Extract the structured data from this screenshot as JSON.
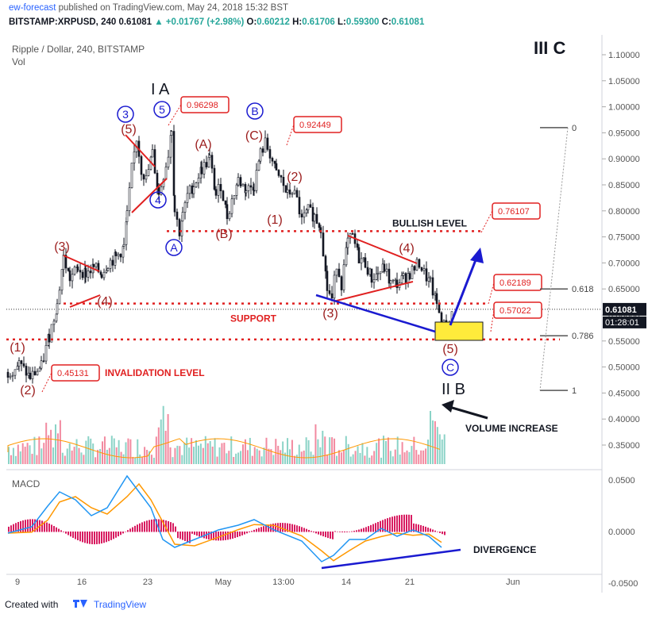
{
  "header": {
    "publisher": "ew-forecast",
    "published_text": "published on TradingView.com, May 24, 2018 15:32 BST",
    "symbol_line": "BITSTAMP:XRPUSD, 240",
    "last": "0.61081",
    "change": "+0.01767 (+2.98%)",
    "ohlc": {
      "O": "0.60212",
      "H": "0.61706",
      "L": "0.59300",
      "C": "0.61081"
    }
  },
  "chart_title": "Ripple / Dollar, 240, BITSTAMP",
  "volume_label": "Vol",
  "macd_label": "MACD",
  "wave_label_top_right": "III C",
  "footer": {
    "created_with": "Created with",
    "brand": "TradingView"
  },
  "chart_data": {
    "type": "line",
    "title": "Ripple / Dollar, 240, BITSTAMP",
    "price_axis": {
      "ticks": [
        "1.10000",
        "1.05000",
        "1.00000",
        "0.95000",
        "0.90000",
        "0.85000",
        "0.80000",
        "0.75000",
        "0.70000",
        "0.65000",
        "0.60000",
        "0.55000",
        "0.50000",
        "0.45000",
        "0.40000",
        "0.35000"
      ],
      "ylim": [
        0.32,
        1.12
      ],
      "current_price": "0.61081",
      "countdown": "01:28:01"
    },
    "macd_axis": {
      "ticks": [
        "0.0500",
        "0.0000",
        "-0.0500"
      ]
    },
    "x_ticks": [
      "9",
      "16",
      "23",
      "May",
      "13:00",
      "14",
      "21",
      "Jun"
    ],
    "price_path": [
      [
        0,
        0.49
      ],
      [
        14,
        0.505
      ],
      [
        28,
        0.48
      ],
      [
        42,
        0.5
      ],
      [
        52,
        0.56
      ],
      [
        62,
        0.62
      ],
      [
        70,
        0.71
      ],
      [
        78,
        0.67
      ],
      [
        88,
        0.69
      ],
      [
        98,
        0.68
      ],
      [
        108,
        0.69
      ],
      [
        118,
        0.68
      ],
      [
        126,
        0.7
      ],
      [
        136,
        0.71
      ],
      [
        146,
        0.73
      ],
      [
        150,
        0.79
      ],
      [
        156,
        0.88
      ],
      [
        162,
        0.94
      ],
      [
        168,
        0.88
      ],
      [
        174,
        0.86
      ],
      [
        182,
        0.91
      ],
      [
        190,
        0.83
      ],
      [
        196,
        0.87
      ],
      [
        202,
        0.91
      ],
      [
        206,
        0.96
      ],
      [
        210,
        0.8
      ],
      [
        216,
        0.76
      ],
      [
        220,
        0.79
      ],
      [
        226,
        0.83
      ],
      [
        234,
        0.85
      ],
      [
        244,
        0.88
      ],
      [
        254,
        0.9
      ],
      [
        262,
        0.83
      ],
      [
        268,
        0.85
      ],
      [
        276,
        0.79
      ],
      [
        282,
        0.82
      ],
      [
        290,
        0.86
      ],
      [
        300,
        0.84
      ],
      [
        310,
        0.85
      ],
      [
        318,
        0.91
      ],
      [
        324,
        0.93
      ],
      [
        330,
        0.91
      ],
      [
        338,
        0.87
      ],
      [
        344,
        0.86
      ],
      [
        352,
        0.83
      ],
      [
        358,
        0.84
      ],
      [
        364,
        0.82
      ],
      [
        370,
        0.78
      ],
      [
        378,
        0.8
      ],
      [
        386,
        0.79
      ],
      [
        394,
        0.77
      ],
      [
        402,
        0.65
      ],
      [
        408,
        0.63
      ],
      [
        414,
        0.7
      ],
      [
        420,
        0.66
      ],
      [
        428,
        0.74
      ],
      [
        434,
        0.75
      ],
      [
        442,
        0.71
      ],
      [
        450,
        0.7
      ],
      [
        458,
        0.67
      ],
      [
        466,
        0.68
      ],
      [
        474,
        0.69
      ],
      [
        482,
        0.66
      ],
      [
        490,
        0.66
      ],
      [
        498,
        0.67
      ],
      [
        506,
        0.68
      ],
      [
        512,
        0.69
      ],
      [
        518,
        0.7
      ],
      [
        524,
        0.68
      ],
      [
        532,
        0.66
      ],
      [
        540,
        0.62
      ],
      [
        546,
        0.59
      ],
      [
        552,
        0.57
      ],
      [
        556,
        0.58
      ],
      [
        560,
        0.61
      ]
    ],
    "horizontal_levels": [
      {
        "name": "BULLISH LEVEL",
        "value": "0.76107"
      },
      {
        "name": "SUPPORT",
        "value": "0.62189"
      },
      {
        "name": "",
        "value": "0.57022"
      },
      {
        "name": "INVALIDATION LEVEL",
        "value": "0.45131"
      }
    ],
    "price_callouts": [
      "0.96298",
      "0.92449",
      "0.76107",
      "0.62189",
      "0.57022",
      "0.45131"
    ],
    "fib_levels": [
      {
        "label": "0",
        "value": 0.96
      },
      {
        "label": "0.618",
        "value": 0.65
      },
      {
        "label": "0.786",
        "value": 0.56
      },
      {
        "label": "1",
        "value": 0.455
      }
    ],
    "wave_labels": {
      "red": [
        "(1)",
        "(2)",
        "(3)",
        "(4)",
        "(5)",
        "(A)",
        "(B)",
        "(C)",
        "(1)",
        "(2)",
        "(3)",
        "(4)",
        "(5)"
      ],
      "blue_circled": [
        "3",
        "4",
        "5",
        "A",
        "B",
        "C"
      ],
      "black": [
        "I A",
        "II B",
        "III C"
      ]
    },
    "annotations": [
      "BULLISH LEVEL",
      "SUPPORT",
      "INVALIDATION LEVEL",
      "VOLUME INCREASE",
      "DIVERGENCE"
    ],
    "colors": {
      "red": "#e02020",
      "blue": "#1a1ad0",
      "up_candle": "#131722",
      "volume_up": "#8bd3c7",
      "volume_down": "#f28aa0",
      "macd_line": "#2196f3",
      "signal_line": "#ff9800",
      "hist": "#d81b60",
      "highlight": "#ffeb3b"
    }
  }
}
